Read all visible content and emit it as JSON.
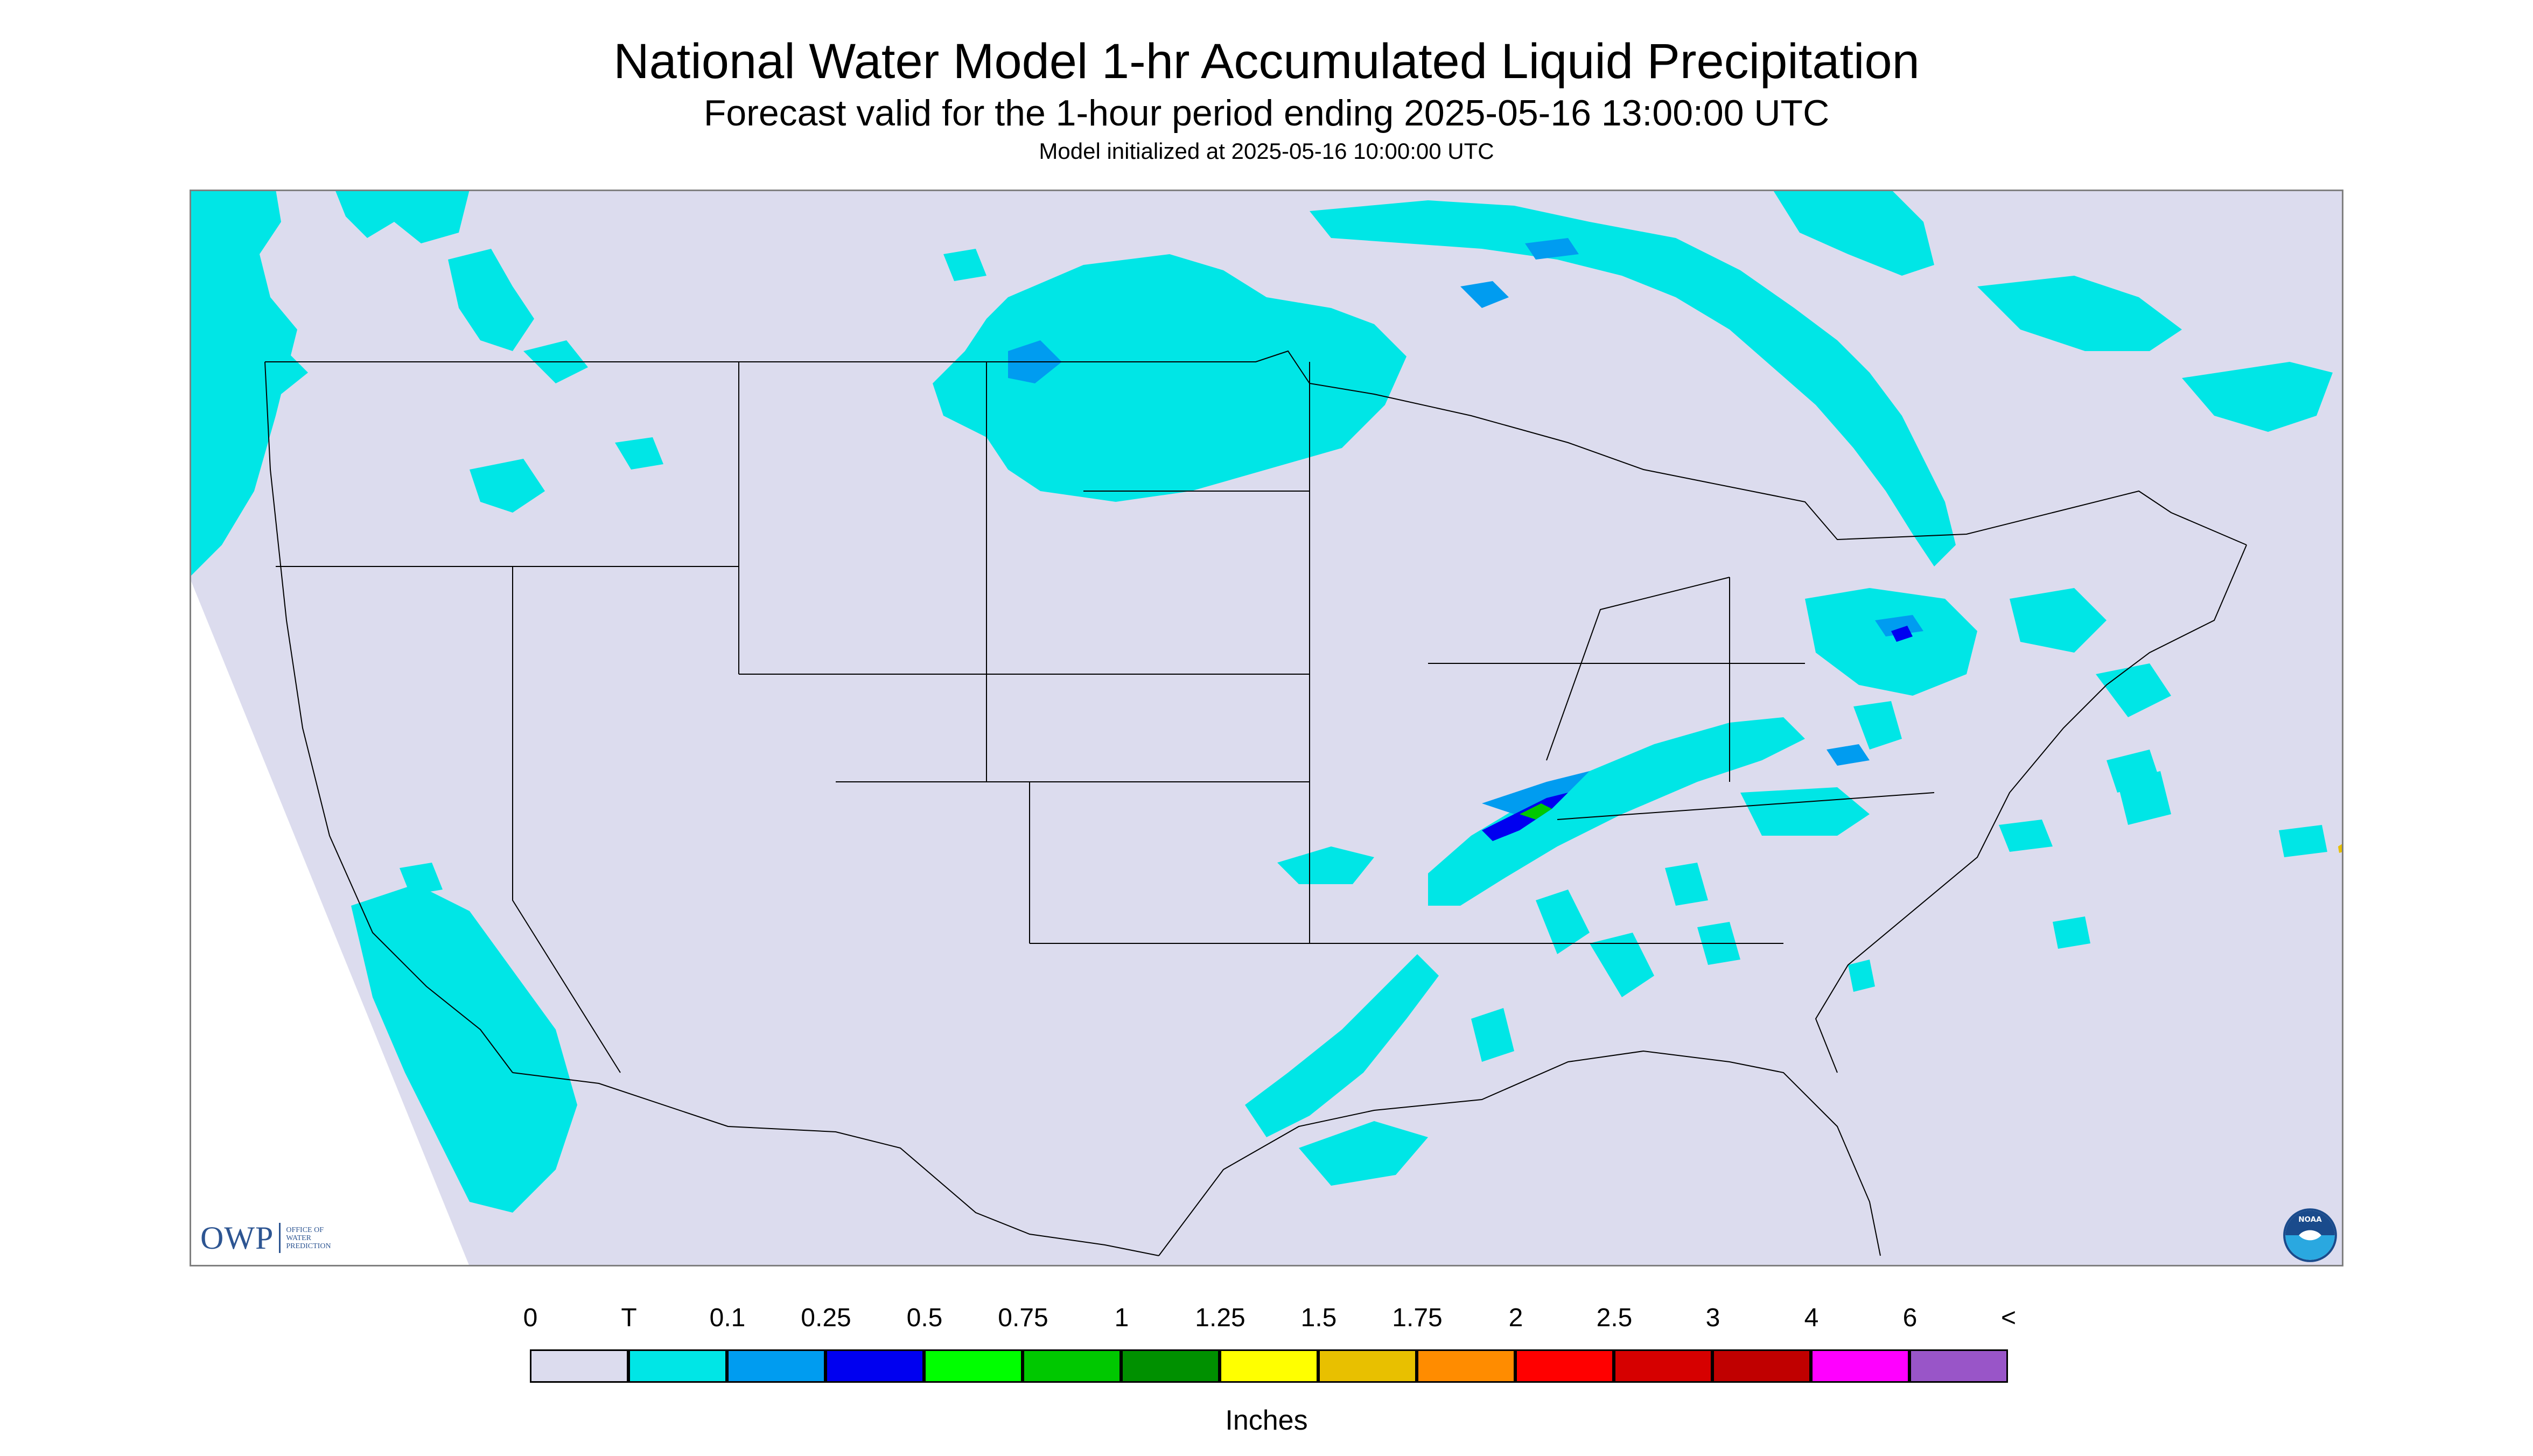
{
  "header": {
    "title": "National Water Model 1-hr Accumulated Liquid Precipitation",
    "subtitle": "Forecast valid for the 1-hour period ending 2025-05-16 13:00:00 UTC",
    "initialized": "Model initialized at 2025-05-16 10:00:00 UTC"
  },
  "map": {
    "background_color": "#dcdcee",
    "outside_color": "#ffffff",
    "boundary_color": "#000000",
    "region": "CONUS"
  },
  "legend": {
    "units": "Inches",
    "labels": [
      "0",
      "T",
      "0.1",
      "0.25",
      "0.5",
      "0.75",
      "1",
      "1.25",
      "1.5",
      "1.75",
      "2",
      "2.5",
      "3",
      "4",
      "6",
      "<"
    ],
    "colors": [
      "#dcdcee",
      "#00e6e6",
      "#009cf0",
      "#0000f0",
      "#00ff00",
      "#00c800",
      "#009000",
      "#ffff00",
      "#e8c000",
      "#ff8c00",
      "#ff0000",
      "#d60000",
      "#c00000",
      "#ff00ff",
      "#9955c8"
    ]
  },
  "logos": {
    "owp": {
      "mark": "OWP",
      "lines": [
        "OFFICE OF",
        "WATER",
        "PREDICTION"
      ]
    },
    "noaa": {
      "mark": "NOAA",
      "icon": "noaa-seal-icon"
    }
  }
}
